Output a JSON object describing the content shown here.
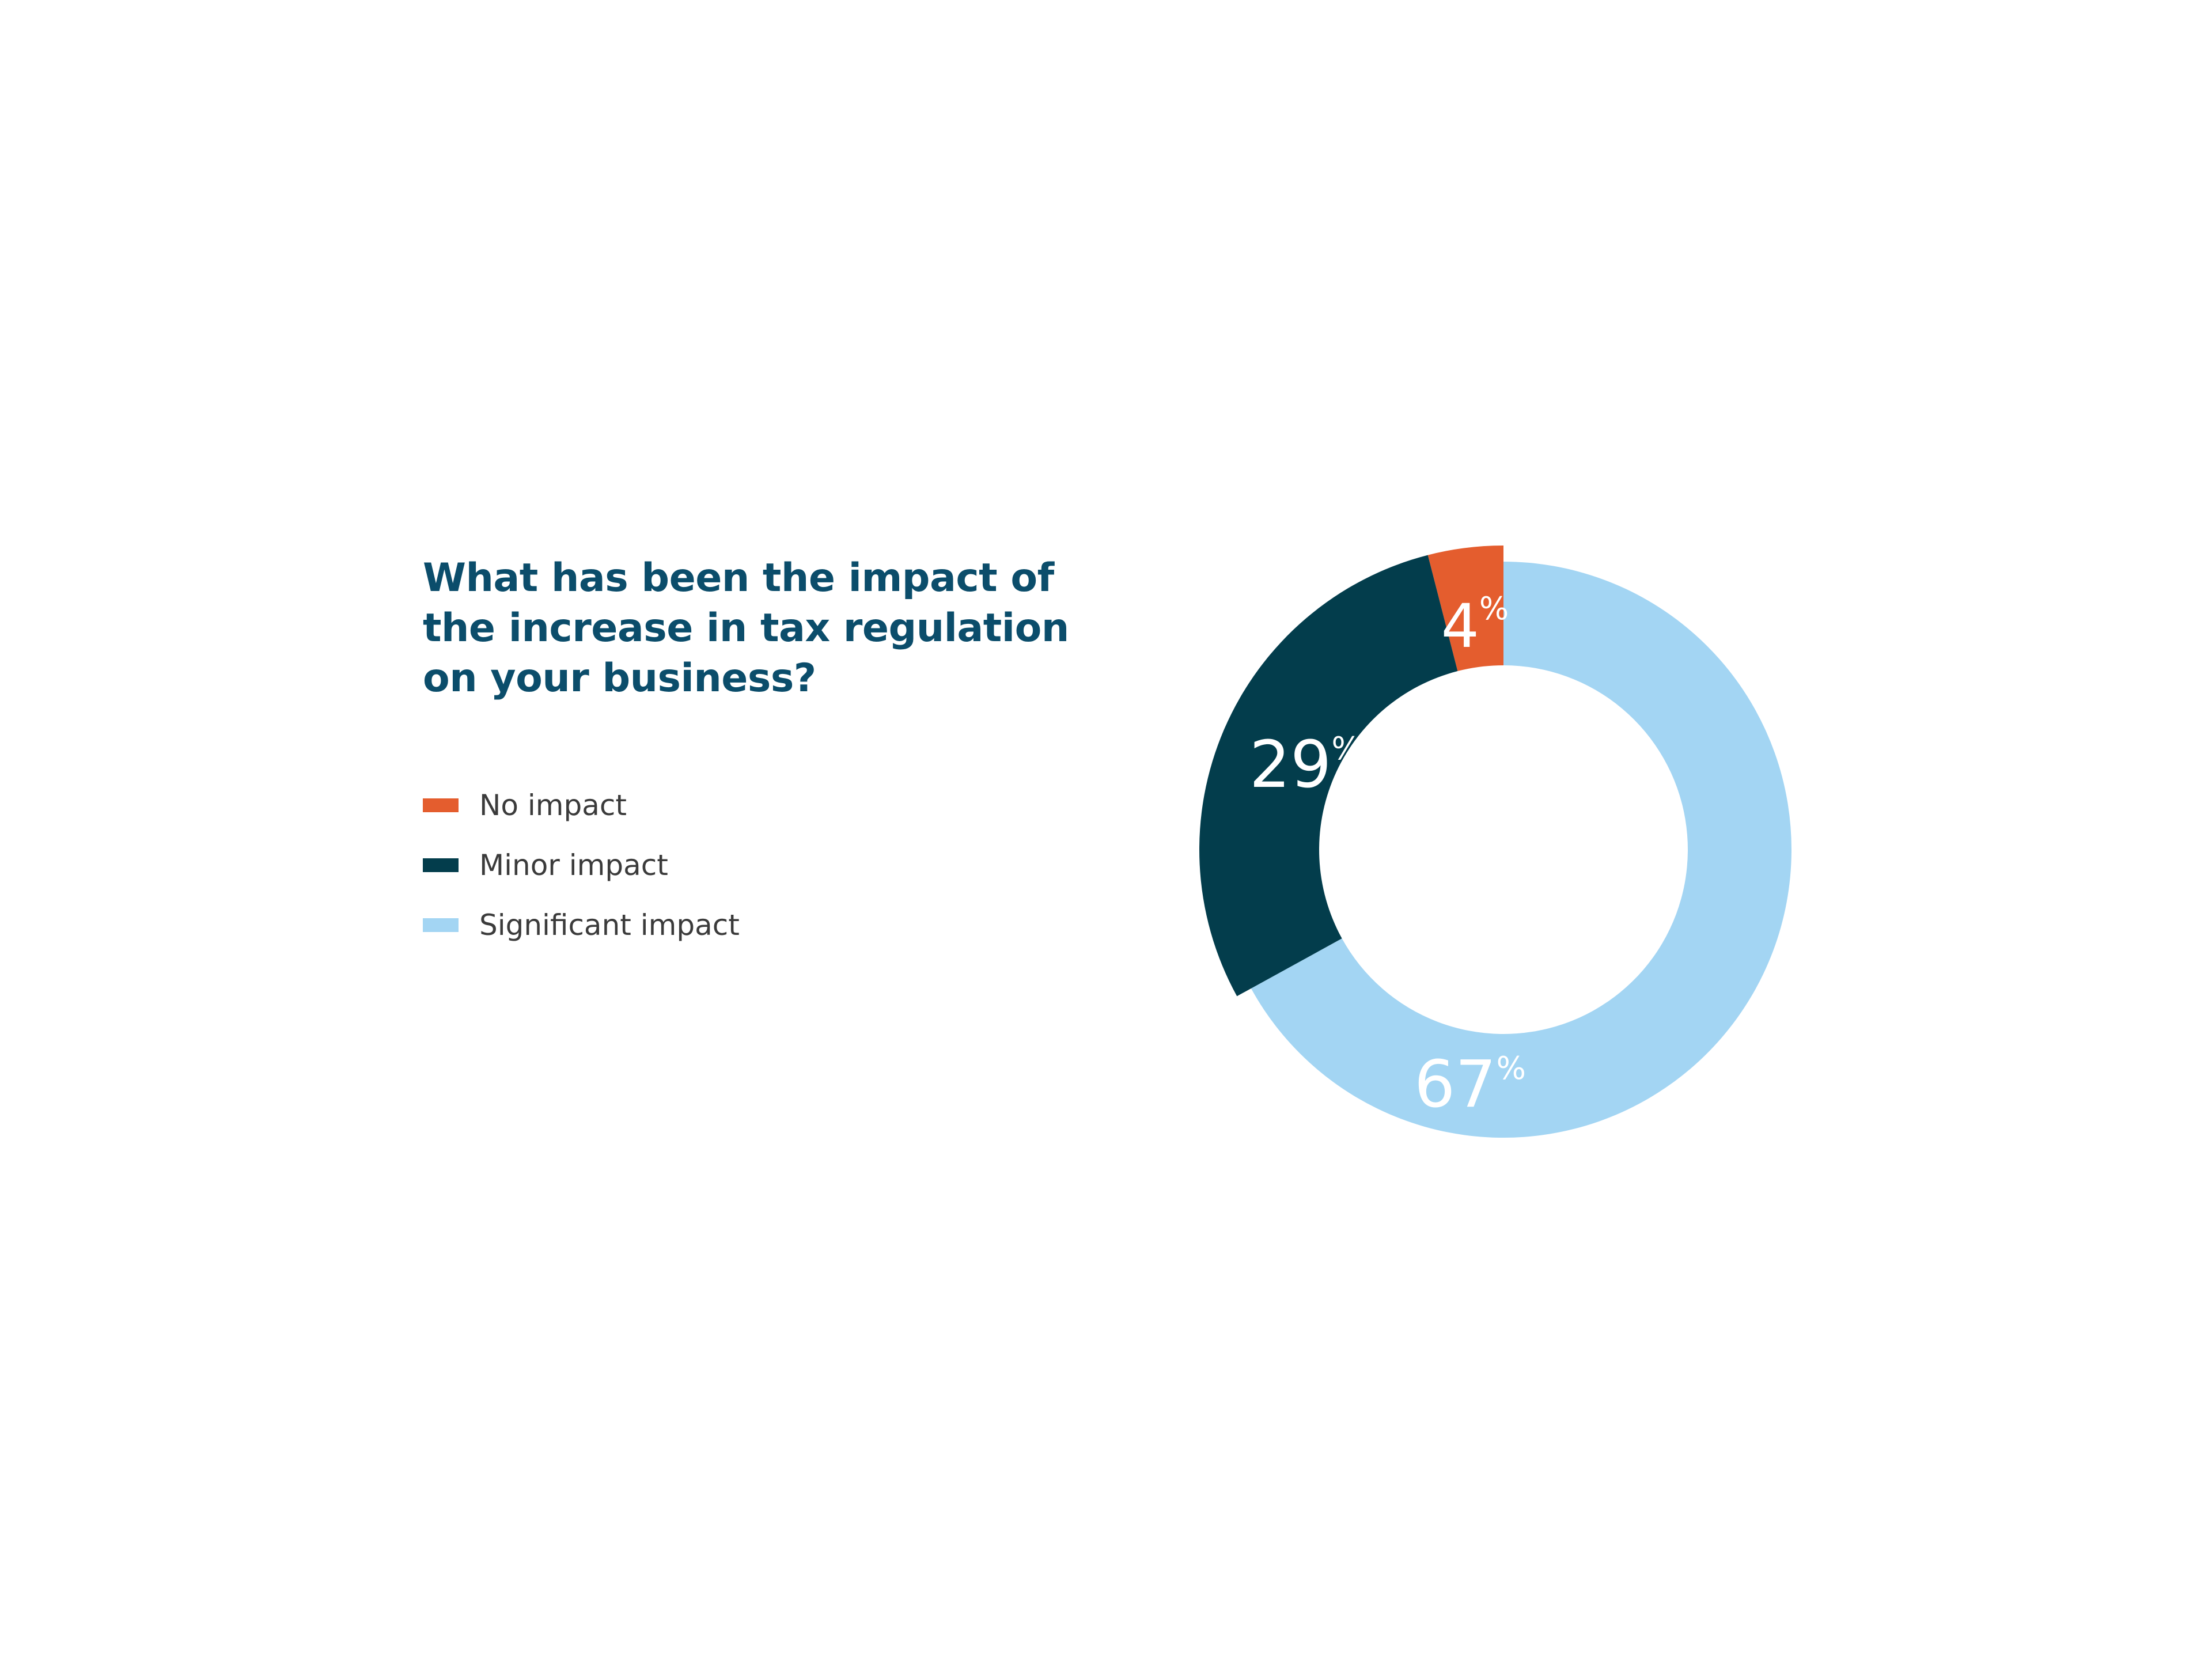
{
  "chart_data": {
    "type": "pie",
    "title": "What has been the impact of the increase in tax regulation on your business?",
    "legend_position": "left",
    "value_suffix": "%",
    "slices": [
      {
        "name": "No impact",
        "value": 4,
        "label": "4",
        "color": "#e45d2e",
        "exploded": true
      },
      {
        "name": "Minor impact",
        "value": 29,
        "label": "29",
        "color": "#033d4c",
        "exploded": true
      },
      {
        "name": "Significant impact",
        "value": 67,
        "label": "67",
        "color": "#a3d5f3",
        "exploded": false
      }
    ]
  }
}
